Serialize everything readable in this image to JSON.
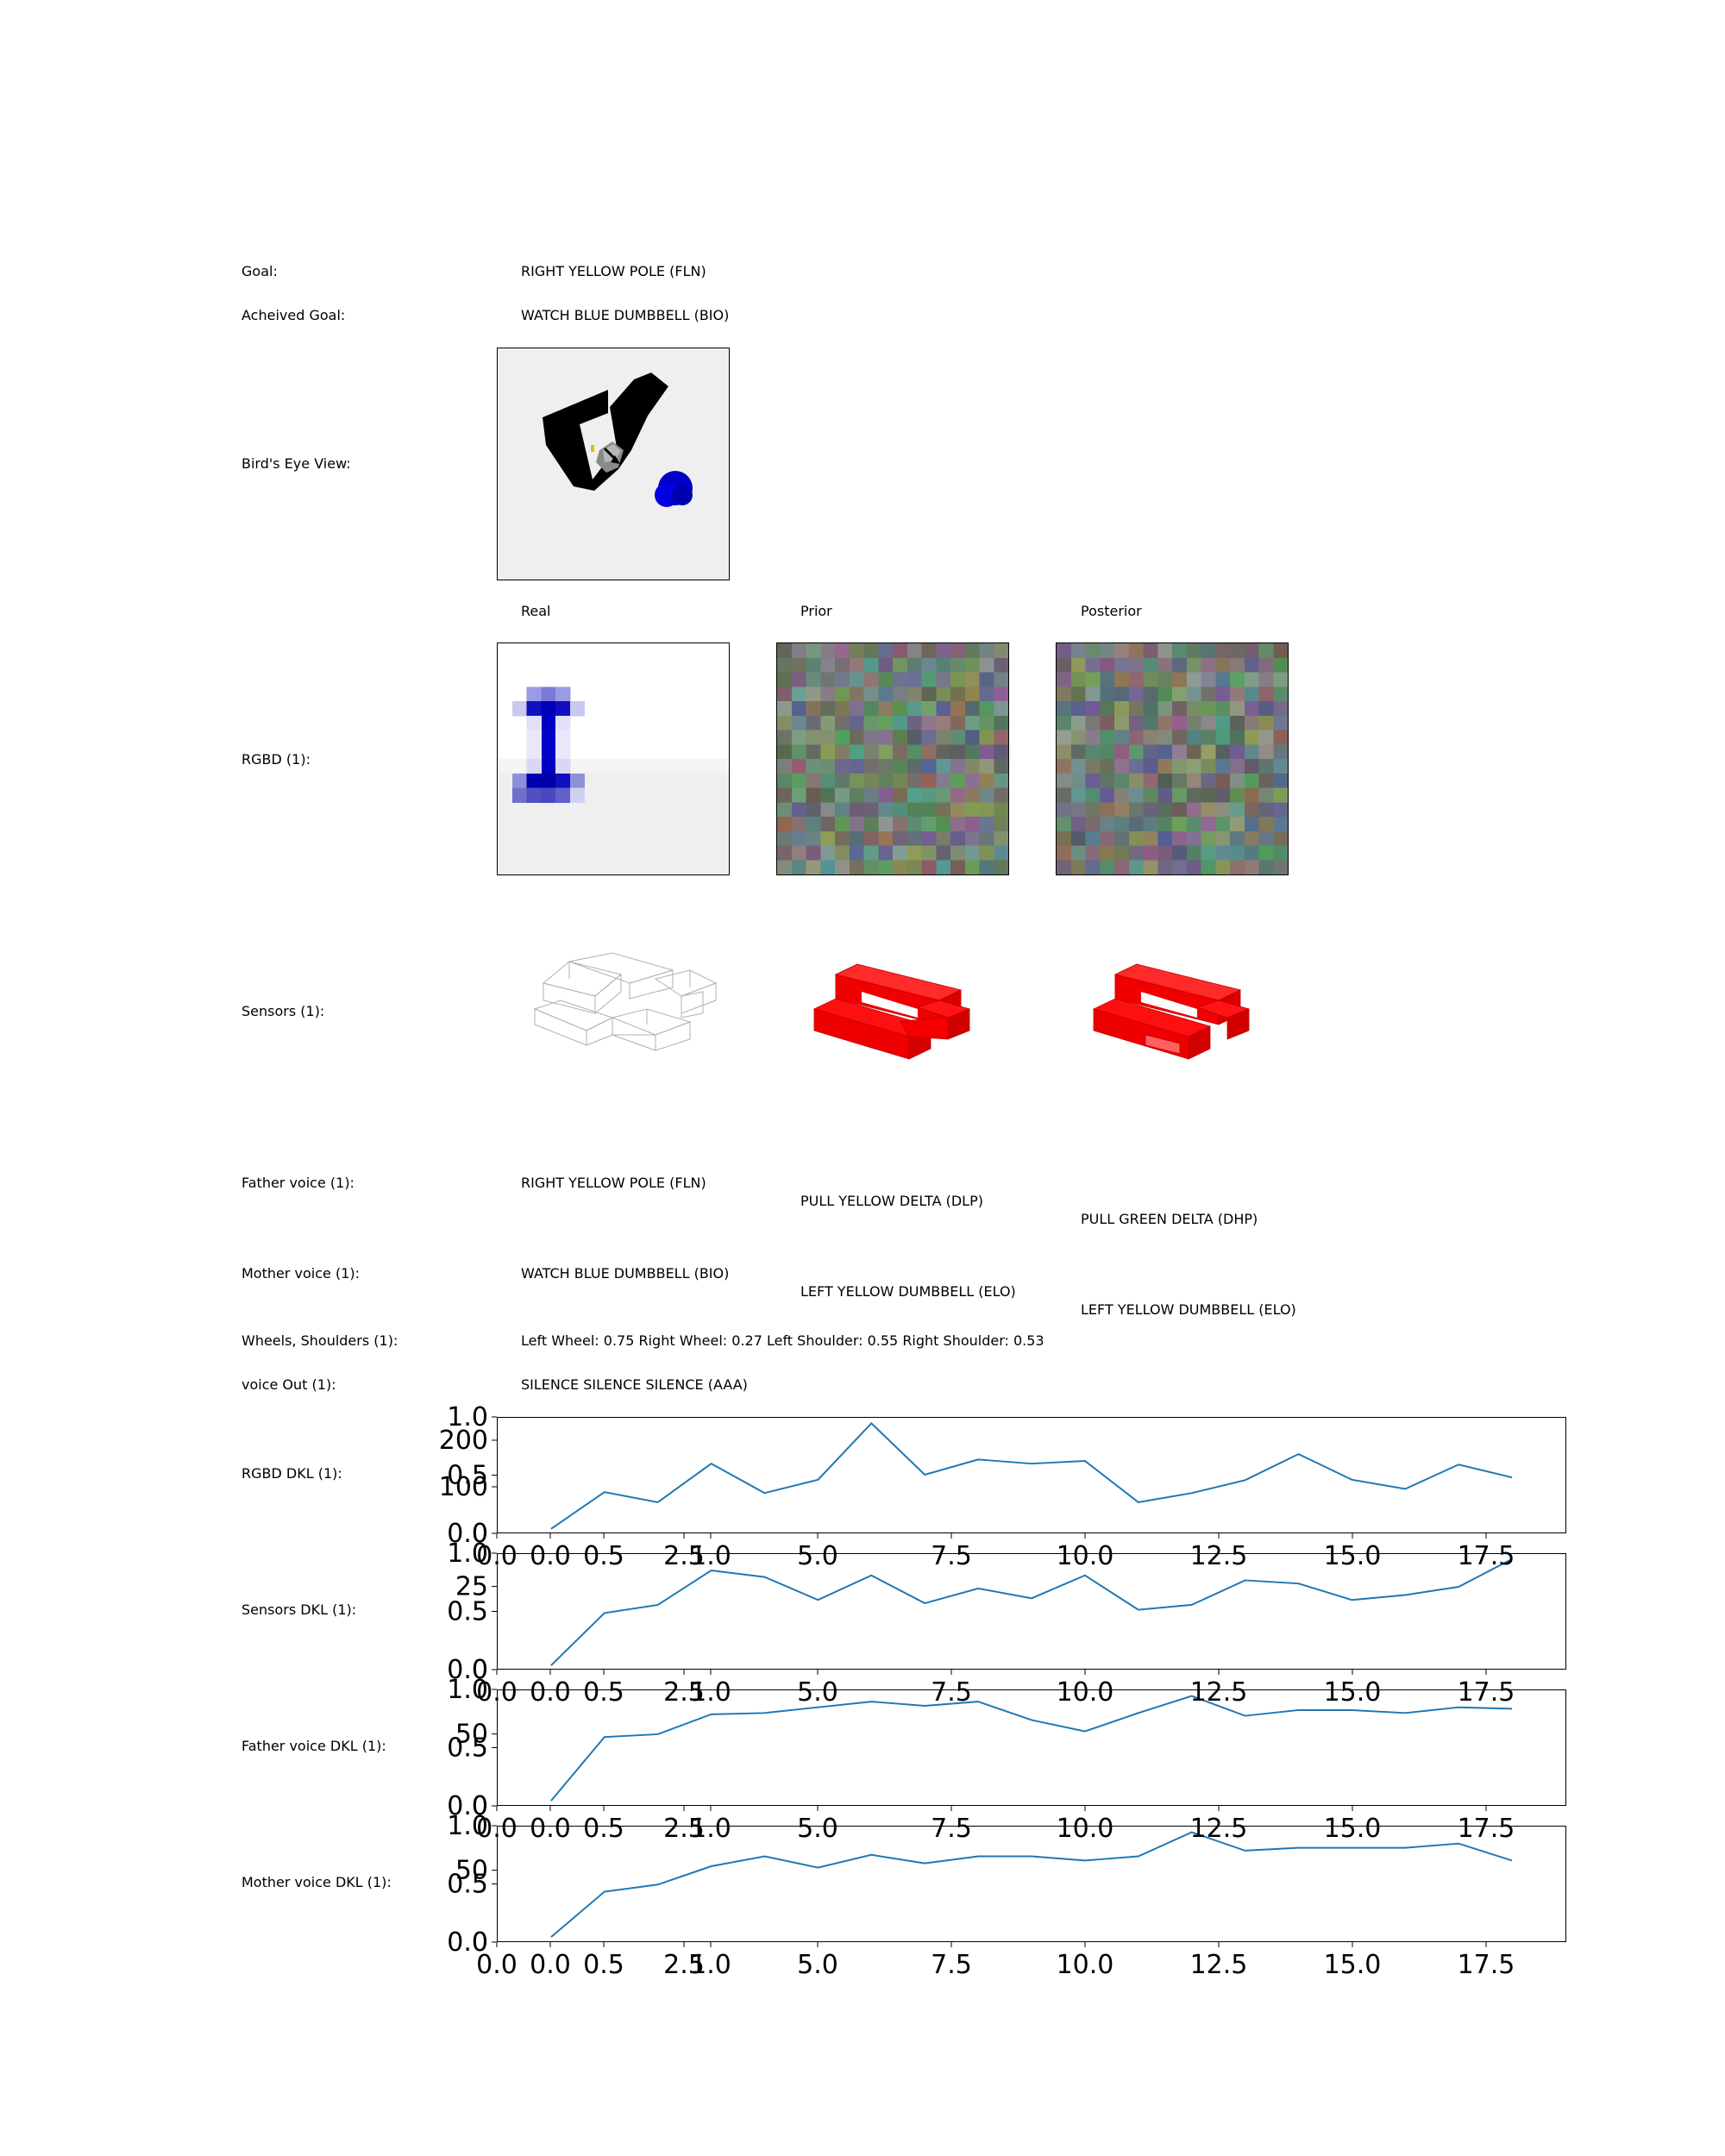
{
  "labels": {
    "goal": "Goal:",
    "achieved_goal": "Acheived Goal:",
    "birds_eye": "Bird's Eye View:",
    "rgbd": "RGBD (1):",
    "sensors": "Sensors (1):",
    "father_voice": "Father voice (1):",
    "mother_voice": "Mother voice (1):",
    "wheels_shoulders": "Wheels, Shoulders (1):",
    "voice_out": "voice Out (1):",
    "rgbd_dkl": "RGBD DKL (1):",
    "sensors_dkl": "Sensors DKL (1):",
    "father_dkl": "Father voice DKL (1):",
    "mother_dkl": "Mother voice DKL (1):"
  },
  "columns": {
    "real": "Real",
    "prior": "Prior",
    "posterior": "Posterior"
  },
  "values": {
    "goal": "RIGHT YELLOW POLE (FLN)",
    "achieved_goal": "WATCH BLUE DUMBBELL (BIO)",
    "father_real": "RIGHT YELLOW POLE (FLN)",
    "father_prior": "PULL YELLOW DELTA (DLP)",
    "father_posterior": "PULL GREEN DELTA (DHP)",
    "mother_real": "WATCH BLUE DUMBBELL (BIO)",
    "mother_prior": "LEFT YELLOW DUMBBELL (ELO)",
    "mother_posterior": "LEFT YELLOW DUMBBELL (ELO)",
    "wheels_shoulders": "Left Wheel: 0.75 Right Wheel: 0.27 Left Shoulder: 0.55 Right Shoulder: 0.53",
    "voice_out": "SILENCE SILENCE SILENCE (AAA)"
  },
  "colors": {
    "line": "#1f77b4",
    "sensor_red": "#ff0000",
    "dumbbell_blue": "#0000c8"
  },
  "chart_data": [
    {
      "type": "line",
      "name": "RGBD DKL (1):",
      "xlim": [
        -1,
        19
      ],
      "ylim": [
        0,
        250
      ],
      "outer_yticks": [
        "0.0",
        "0.5",
        "1.0"
      ],
      "outer_xticks": [
        "0.0",
        "0.5",
        "1.0"
      ],
      "yticks": [
        0,
        100,
        200
      ],
      "xticks": [
        0.0,
        2.5,
        5.0,
        7.5,
        10.0,
        12.5,
        15.0,
        17.5
      ],
      "x": [
        0,
        1,
        2,
        3,
        4,
        5,
        6,
        7,
        8,
        9,
        10,
        11,
        12,
        13,
        14,
        15,
        16,
        17,
        18
      ],
      "values": [
        8,
        88,
        66,
        150,
        86,
        115,
        238,
        126,
        159,
        150,
        156,
        66,
        86,
        114,
        171,
        115,
        95,
        148,
        120
      ]
    },
    {
      "type": "line",
      "name": "Sensors DKL (1):",
      "xlim": [
        -1,
        19
      ],
      "ylim": [
        0,
        35
      ],
      "outer_yticks": [
        "0.0",
        "0.5",
        "1.0"
      ],
      "outer_xticks": [
        "0.0",
        "0.5",
        "1.0"
      ],
      "yticks": [
        0,
        25
      ],
      "xticks": [
        0.0,
        2.5,
        5.0,
        7.5,
        10.0,
        12.5,
        15.0,
        17.5
      ],
      "x": [
        0,
        1,
        2,
        3,
        4,
        5,
        6,
        7,
        8,
        9,
        10,
        11,
        12,
        13,
        14,
        15,
        16,
        17,
        18
      ],
      "values": [
        1,
        17,
        19.5,
        30,
        28,
        21,
        28.5,
        20,
        24.5,
        21.5,
        28.5,
        18,
        19.5,
        27,
        26,
        21,
        22.5,
        25,
        33.5
      ]
    },
    {
      "type": "line",
      "name": "Father voice DKL (1):",
      "xlim": [
        -1,
        19
      ],
      "ylim": [
        0,
        81
      ],
      "outer_yticks": [
        "0.0",
        "0.5",
        "1.0"
      ],
      "outer_xticks": [
        "0.0",
        "0.5",
        "1.0"
      ],
      "yticks": [
        0,
        50
      ],
      "xticks": [
        0.0,
        2.5,
        5.0,
        7.5,
        10.0,
        12.5,
        15.0,
        17.5
      ],
      "x": [
        0,
        1,
        2,
        3,
        4,
        5,
        6,
        7,
        8,
        9,
        10,
        11,
        12,
        13,
        14,
        15,
        16,
        17,
        18
      ],
      "values": [
        3,
        48,
        50,
        64,
        65,
        69,
        73,
        70,
        73,
        60,
        52,
        65,
        77,
        63,
        67,
        67,
        65,
        69,
        68
      ]
    },
    {
      "type": "line",
      "name": "Mother voice DKL (1):",
      "xlim": [
        -1,
        19
      ],
      "ylim": [
        0,
        81
      ],
      "outer_yticks": [
        "0.0",
        "0.5",
        "1.0"
      ],
      "outer_xticks": [
        "0.0",
        "0.5",
        "1.0"
      ],
      "yticks": [
        0,
        50
      ],
      "xticks": [
        0.0,
        2.5,
        5.0,
        7.5,
        10.0,
        12.5,
        15.0,
        17.5
      ],
      "x": [
        0,
        1,
        2,
        3,
        4,
        5,
        6,
        7,
        8,
        9,
        10,
        11,
        12,
        13,
        14,
        15,
        16,
        17,
        18
      ],
      "values": [
        3,
        35,
        40,
        53,
        60,
        52,
        61,
        55,
        60,
        60,
        57,
        60,
        77,
        64,
        66,
        66,
        66,
        69,
        57
      ]
    }
  ]
}
